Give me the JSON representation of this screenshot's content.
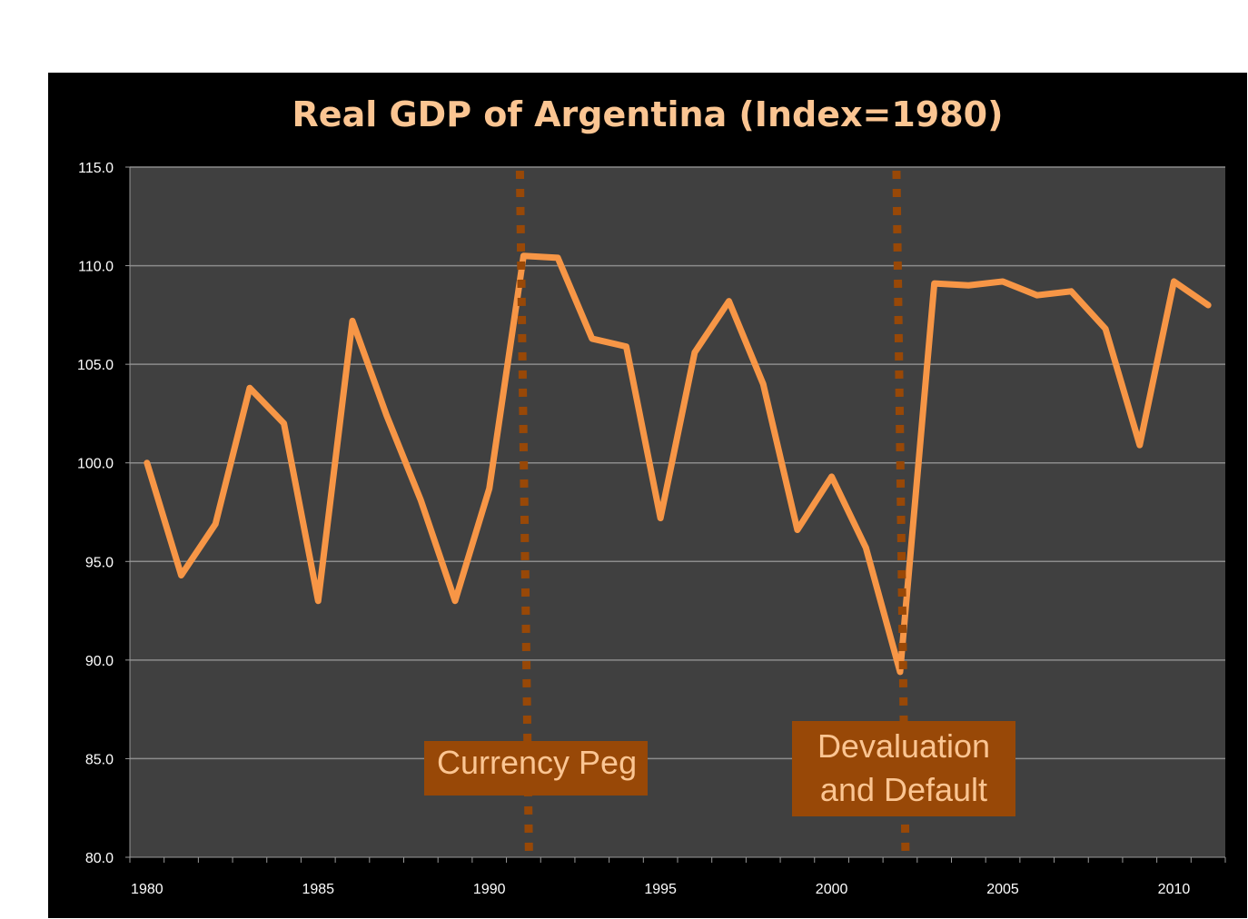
{
  "chart_data": {
    "type": "line",
    "title": "Real GDP of Argentina (Index=1980)",
    "x": [
      1980,
      1981,
      1982,
      1983,
      1984,
      1985,
      1986,
      1987,
      1988,
      1989,
      1990,
      1991,
      1992,
      1993,
      1994,
      1995,
      1996,
      1997,
      1998,
      1999,
      2000,
      2001,
      2002,
      2003,
      2004,
      2005,
      2006,
      2007,
      2008,
      2009,
      2010,
      2011
    ],
    "series": [
      {
        "values": [
          100.0,
          94.3,
          96.9,
          103.8,
          102.0,
          93.0,
          107.2,
          102.4,
          98.1,
          93.0,
          98.7,
          110.5,
          110.4,
          106.3,
          105.9,
          97.2,
          105.6,
          108.2,
          104.0,
          96.6,
          99.3,
          95.7,
          89.4,
          109.1,
          109.0,
          109.2,
          108.5,
          108.7,
          106.8,
          100.9,
          109.2,
          108.0
        ],
        "color": "#f79646"
      }
    ],
    "xticks": [
      "1980",
      "1985",
      "1990",
      "1995",
      "2000",
      "2005",
      "2010"
    ],
    "yticks": [
      "80.0",
      "85.0",
      "90.0",
      "95.0",
      "100.0",
      "105.0",
      "110.0",
      "115.0"
    ],
    "ylim": [
      80,
      115
    ],
    "grid": true,
    "annotations": [
      {
        "year": 1991,
        "label": "Currency Peg"
      },
      {
        "year": 2002,
        "label": "Devaluation and Default"
      }
    ],
    "colors": {
      "background": "#000000",
      "plot_area": "#404040",
      "line": "#f79646",
      "marker_line": "#984807",
      "title": "#fbc592"
    }
  }
}
